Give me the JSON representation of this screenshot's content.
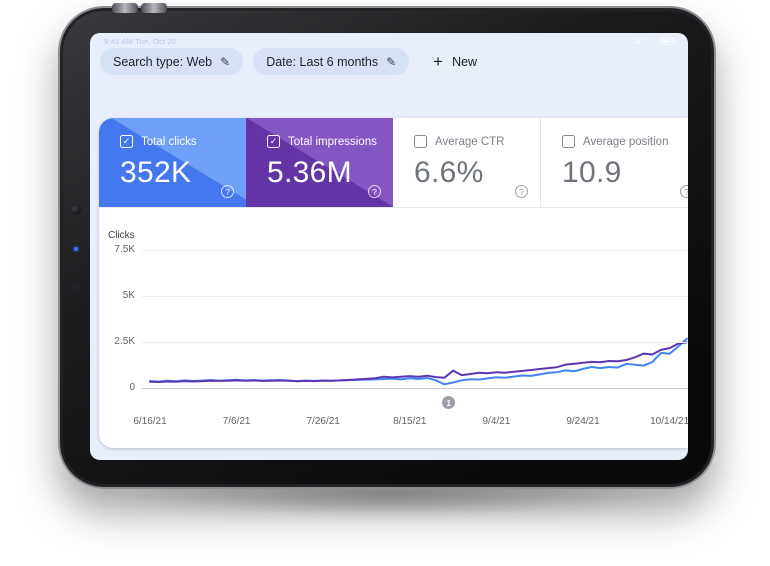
{
  "device": {
    "status_text": "9:41 AM Tue, Oct 20"
  },
  "icons": {
    "edit": "✎",
    "plus": "+",
    "check": "✓",
    "help": "?"
  },
  "filters": {
    "search_type": {
      "label": "Search type: Web"
    },
    "date": {
      "label": "Date: Last 6 months"
    },
    "new_filter": {
      "label": "New"
    }
  },
  "metrics": {
    "cards": [
      {
        "label": "Total clicks",
        "value": "352K",
        "checked": true,
        "color_dark": "#4478ee",
        "color_light": "#6fa0f7"
      },
      {
        "label": "Total impressions",
        "value": "5.36M",
        "checked": true,
        "color_dark": "#6434a6",
        "color_light": "#8356c1"
      },
      {
        "label": "Average CTR",
        "value": "6.6%",
        "checked": false,
        "color_dark": "#ffffff",
        "color_light": "#ffffff"
      },
      {
        "label": "Average position",
        "value": "10.9",
        "checked": false,
        "color_dark": "#ffffff",
        "color_light": "#ffffff"
      }
    ]
  },
  "chart_data": {
    "type": "line",
    "title": "Clicks",
    "ylabel": "Clicks",
    "xlabel": "",
    "grid": true,
    "legend_position": "none",
    "ylim": [
      0,
      8000
    ],
    "xlim_days": [
      0,
      124
    ],
    "y_ticks": [
      {
        "label": "7.5K",
        "value": 7500
      },
      {
        "label": "5K",
        "value": 5000
      },
      {
        "label": "2.5K",
        "value": 2500
      },
      {
        "label": "0",
        "value": 0
      }
    ],
    "x_ticks": [
      {
        "label": "6/16/21",
        "day": 0
      },
      {
        "label": "7/6/21",
        "day": 20
      },
      {
        "label": "7/26/21",
        "day": 40
      },
      {
        "label": "8/15/21",
        "day": 60
      },
      {
        "label": "9/4/21",
        "day": 80
      },
      {
        "label": "9/24/21",
        "day": 100
      },
      {
        "label": "10/14/21",
        "day": 120
      }
    ],
    "annotation_marker": {
      "label": "1",
      "day": 69
    },
    "series": [
      {
        "name": "Total clicks",
        "color": "#4285f4",
        "points": [
          [
            0,
            380
          ],
          [
            2,
            350
          ],
          [
            4,
            400
          ],
          [
            6,
            365
          ],
          [
            8,
            415
          ],
          [
            10,
            380
          ],
          [
            12,
            400
          ],
          [
            14,
            435
          ],
          [
            16,
            395
          ],
          [
            18,
            425
          ],
          [
            20,
            445
          ],
          [
            22,
            405
          ],
          [
            24,
            435
          ],
          [
            26,
            400
          ],
          [
            28,
            425
          ],
          [
            30,
            435
          ],
          [
            32,
            405
          ],
          [
            34,
            375
          ],
          [
            36,
            400
          ],
          [
            38,
            385
          ],
          [
            40,
            405
          ],
          [
            42,
            395
          ],
          [
            44,
            415
          ],
          [
            46,
            430
          ],
          [
            48,
            440
          ],
          [
            50,
            455
          ],
          [
            52,
            470
          ],
          [
            54,
            490
          ],
          [
            56,
            510
          ],
          [
            58,
            470
          ],
          [
            60,
            530
          ],
          [
            62,
            490
          ],
          [
            64,
            545
          ],
          [
            66,
            420
          ],
          [
            68,
            200
          ],
          [
            70,
            300
          ],
          [
            72,
            420
          ],
          [
            74,
            480
          ],
          [
            76,
            460
          ],
          [
            78,
            520
          ],
          [
            80,
            580
          ],
          [
            82,
            560
          ],
          [
            84,
            620
          ],
          [
            86,
            680
          ],
          [
            88,
            660
          ],
          [
            90,
            740
          ],
          [
            92,
            820
          ],
          [
            94,
            860
          ],
          [
            96,
            960
          ],
          [
            98,
            910
          ],
          [
            100,
            1040
          ],
          [
            102,
            1140
          ],
          [
            104,
            1080
          ],
          [
            106,
            1140
          ],
          [
            108,
            1110
          ],
          [
            110,
            1310
          ],
          [
            112,
            1260
          ],
          [
            114,
            1220
          ],
          [
            116,
            1410
          ],
          [
            118,
            1910
          ],
          [
            120,
            1860
          ],
          [
            122,
            2260
          ],
          [
            124,
            2680
          ]
        ]
      },
      {
        "name": "Total impressions",
        "color": "#5e35b1",
        "points": [
          [
            0,
            340
          ],
          [
            2,
            325
          ],
          [
            4,
            355
          ],
          [
            6,
            345
          ],
          [
            8,
            375
          ],
          [
            10,
            355
          ],
          [
            12,
            375
          ],
          [
            14,
            395
          ],
          [
            16,
            385
          ],
          [
            18,
            395
          ],
          [
            20,
            415
          ],
          [
            22,
            395
          ],
          [
            24,
            405
          ],
          [
            26,
            385
          ],
          [
            28,
            395
          ],
          [
            30,
            405
          ],
          [
            32,
            395
          ],
          [
            34,
            365
          ],
          [
            36,
            385
          ],
          [
            38,
            375
          ],
          [
            40,
            395
          ],
          [
            42,
            395
          ],
          [
            44,
            415
          ],
          [
            46,
            440
          ],
          [
            48,
            465
          ],
          [
            50,
            495
          ],
          [
            52,
            535
          ],
          [
            54,
            615
          ],
          [
            56,
            575
          ],
          [
            58,
            615
          ],
          [
            60,
            645
          ],
          [
            62,
            615
          ],
          [
            64,
            670
          ],
          [
            66,
            590
          ],
          [
            68,
            560
          ],
          [
            70,
            940
          ],
          [
            72,
            700
          ],
          [
            74,
            760
          ],
          [
            76,
            830
          ],
          [
            78,
            800
          ],
          [
            80,
            860
          ],
          [
            82,
            830
          ],
          [
            84,
            880
          ],
          [
            86,
            930
          ],
          [
            88,
            980
          ],
          [
            90,
            1030
          ],
          [
            92,
            1080
          ],
          [
            94,
            1130
          ],
          [
            96,
            1270
          ],
          [
            98,
            1320
          ],
          [
            100,
            1370
          ],
          [
            102,
            1420
          ],
          [
            104,
            1400
          ],
          [
            106,
            1470
          ],
          [
            108,
            1450
          ],
          [
            110,
            1520
          ],
          [
            112,
            1670
          ],
          [
            114,
            1870
          ],
          [
            116,
            1820
          ],
          [
            118,
            2070
          ],
          [
            120,
            2170
          ],
          [
            122,
            2420
          ],
          [
            124,
            2480
          ]
        ]
      }
    ]
  }
}
